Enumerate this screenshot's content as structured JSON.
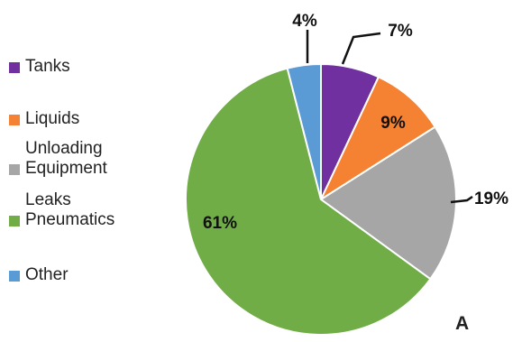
{
  "chart_data": {
    "type": "pie",
    "title": "",
    "panel_label": "A",
    "slices": [
      {
        "label": "Tanks",
        "value": 7,
        "value_label": "7%",
        "color": "#7030a0"
      },
      {
        "label": "Liquids",
        "value": 9,
        "value_label": "9%",
        "color": "#f58233"
      },
      {
        "label": "Unloading\nEquipment",
        "value": 19,
        "value_label": "19%",
        "color": "#a6a6a6"
      },
      {
        "label": "Leaks\nPneumatics",
        "value": 61,
        "value_label": "61%",
        "color": "#70ad47"
      },
      {
        "label": "Other",
        "value": 4,
        "value_label": "4%",
        "color": "#5b9bd5"
      }
    ],
    "legend_position": "left",
    "start_angle": "12 o'clock, clockwise"
  }
}
